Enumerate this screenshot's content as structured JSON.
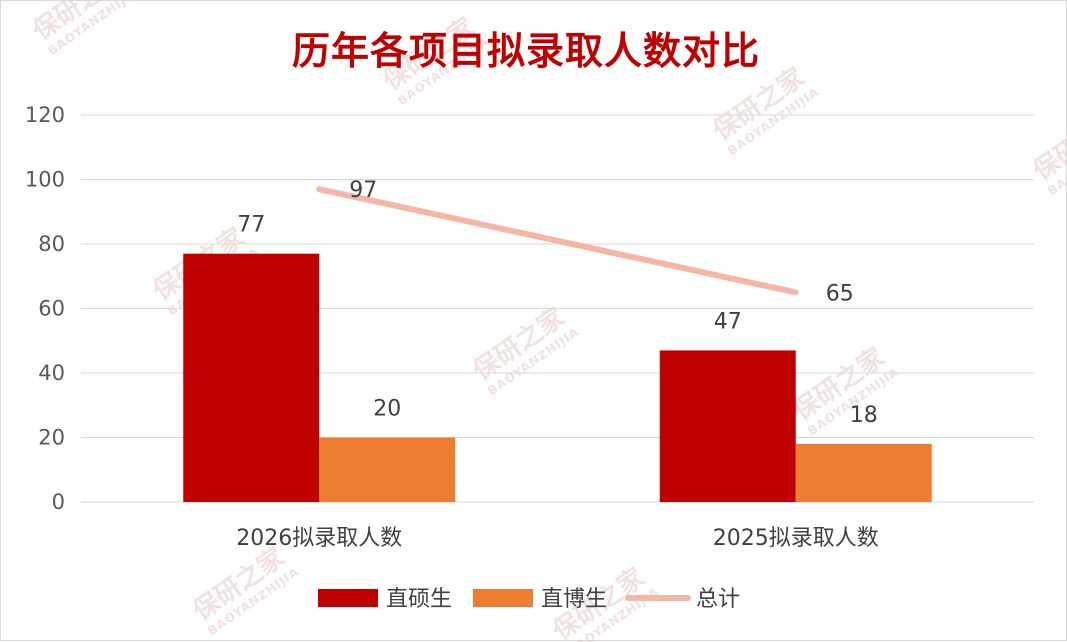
{
  "chart_data": {
    "type": "bar",
    "title": "历年各项目拟录取人数对比",
    "categories": [
      "2026拟录取人数",
      "2025拟录取人数"
    ],
    "series": [
      {
        "name": "直硕生",
        "type": "bar",
        "values": [
          77,
          47
        ],
        "color": "#c00000"
      },
      {
        "name": "直博生",
        "type": "bar",
        "values": [
          20,
          18
        ],
        "color": "#ed7d31"
      },
      {
        "name": "总计",
        "type": "line",
        "values": [
          97,
          65
        ],
        "color": "#f4b6a6"
      }
    ],
    "ylim": [
      0,
      120
    ],
    "yticks": [
      0,
      20,
      40,
      60,
      80,
      100,
      120
    ],
    "ytick_labels": [
      "0",
      "20",
      "40",
      "60",
      "80",
      "100",
      "120"
    ],
    "xlabel": "",
    "ylabel": "",
    "grid": true,
    "legend_position": "bottom"
  },
  "watermark": {
    "text": "保研之家",
    "subtext": "BAOYANZHIJIA"
  }
}
